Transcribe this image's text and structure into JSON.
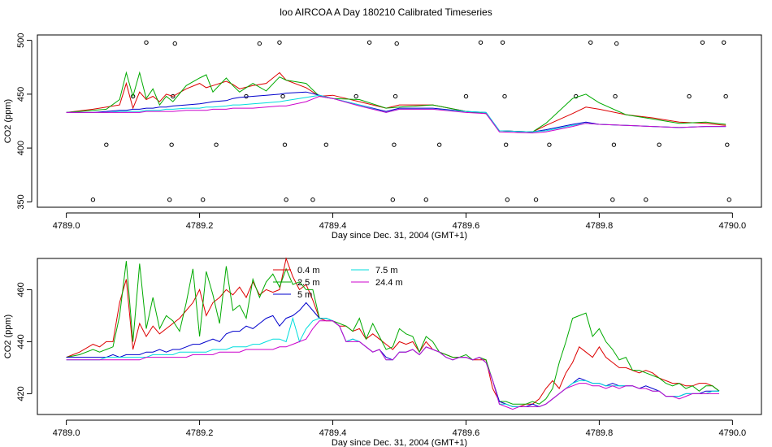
{
  "figure_title": "loo AIRCOA A  Day 180210  Calibrated Timeseries",
  "colors": {
    "0.4 m": "#dd0000",
    "2.5 m": "#00aa00",
    "5 m": "#0000cc",
    "7.5 m": "#00dddd",
    "24.4 m": "#cc00cc",
    "raw_points": "#000000"
  },
  "chart_data": [
    {
      "type": "line",
      "title": "",
      "xlabel": "Day since Dec. 31, 2004 (GMT+1)",
      "ylabel": "CO2 (ppm)",
      "xlim": [
        4789.0,
        4790.0
      ],
      "ylim": [
        345,
        505
      ],
      "xticks": [
        "4789.0",
        "4789.2",
        "4789.4",
        "4789.6",
        "4789.8",
        "4790.0"
      ],
      "yticks": [
        "350",
        "400",
        "450",
        "500"
      ],
      "x": [
        4789.0,
        4789.04,
        4789.06,
        4789.08,
        4789.09,
        4789.1,
        4789.11,
        4789.12,
        4789.13,
        4789.14,
        4789.15,
        4789.16,
        4789.18,
        4789.2,
        4789.21,
        4789.22,
        4789.24,
        4789.25,
        4789.26,
        4789.28,
        4789.3,
        4789.32,
        4789.33,
        4789.36,
        4789.38,
        4789.4,
        4789.44,
        4789.48,
        4789.5,
        4789.55,
        4789.6,
        4789.63,
        4789.65,
        4789.7,
        4789.72,
        4789.76,
        4789.78,
        4789.8,
        4789.84,
        4789.88,
        4789.92,
        4789.96,
        4789.99
      ],
      "series": [
        {
          "name": "0.4 m",
          "values": [
            433,
            436,
            438,
            440,
            460,
            437,
            452,
            445,
            448,
            443,
            450,
            448,
            455,
            460,
            456,
            458,
            462,
            459,
            455,
            458,
            460,
            470,
            463,
            456,
            448,
            449,
            443,
            437,
            440,
            440,
            434,
            432,
            416,
            415,
            421,
            432,
            438,
            436,
            431,
            428,
            424,
            423,
            421
          ]
        },
        {
          "name": "2.5 m",
          "values": [
            433,
            435,
            436,
            445,
            470,
            448,
            470,
            446,
            455,
            440,
            448,
            443,
            458,
            465,
            468,
            452,
            465,
            458,
            452,
            460,
            453,
            466,
            463,
            460,
            448,
            446,
            445,
            437,
            438,
            440,
            434,
            432,
            416,
            415,
            423,
            446,
            450,
            442,
            431,
            427,
            423,
            424,
            422
          ]
        },
        {
          "name": "5 m",
          "values": [
            433,
            433,
            434,
            435,
            435,
            436,
            436,
            437,
            437,
            438,
            438,
            439,
            440,
            441,
            442,
            443,
            444,
            446,
            447,
            448,
            449,
            450,
            451,
            452,
            449,
            446,
            440,
            434,
            437,
            437,
            434,
            433,
            416,
            415,
            417,
            422,
            424,
            422,
            421,
            420,
            419,
            420,
            420
          ]
        },
        {
          "name": "7.5 m",
          "values": [
            433,
            433,
            433,
            434,
            434,
            434,
            434,
            435,
            435,
            435,
            436,
            436,
            437,
            437,
            438,
            438,
            439,
            440,
            440,
            441,
            442,
            443,
            444,
            447,
            449,
            446,
            440,
            433,
            436,
            436,
            434,
            433,
            416,
            415,
            416,
            421,
            423,
            422,
            421,
            420,
            419,
            420,
            420
          ]
        },
        {
          "name": "24.4 m",
          "values": [
            433,
            433,
            433,
            433,
            433,
            433,
            433,
            434,
            434,
            434,
            434,
            434,
            435,
            435,
            435,
            436,
            436,
            437,
            437,
            437,
            438,
            439,
            439,
            443,
            448,
            446,
            439,
            433,
            436,
            436,
            433,
            432,
            415,
            414,
            415,
            420,
            423,
            422,
            421,
            420,
            419,
            420,
            420
          ]
        }
      ],
      "raw_points": [
        {
          "x": 4789.04,
          "y": 352
        },
        {
          "x": 4789.06,
          "y": 403
        },
        {
          "x": 4789.1,
          "y": 448
        },
        {
          "x": 4789.12,
          "y": 498
        },
        {
          "x": 4789.155,
          "y": 352
        },
        {
          "x": 4789.158,
          "y": 403
        },
        {
          "x": 4789.16,
          "y": 448
        },
        {
          "x": 4789.163,
          "y": 497
        },
        {
          "x": 4789.205,
          "y": 352
        },
        {
          "x": 4789.225,
          "y": 403
        },
        {
          "x": 4789.27,
          "y": 448
        },
        {
          "x": 4789.29,
          "y": 497
        },
        {
          "x": 4789.32,
          "y": 498
        },
        {
          "x": 4789.325,
          "y": 448
        },
        {
          "x": 4789.328,
          "y": 403
        },
        {
          "x": 4789.33,
          "y": 352
        },
        {
          "x": 4789.37,
          "y": 352
        },
        {
          "x": 4789.39,
          "y": 403
        },
        {
          "x": 4789.435,
          "y": 448
        },
        {
          "x": 4789.455,
          "y": 498
        },
        {
          "x": 4789.49,
          "y": 352
        },
        {
          "x": 4789.492,
          "y": 403
        },
        {
          "x": 4789.494,
          "y": 448
        },
        {
          "x": 4789.496,
          "y": 497
        },
        {
          "x": 4789.54,
          "y": 352
        },
        {
          "x": 4789.56,
          "y": 403
        },
        {
          "x": 4789.6,
          "y": 448
        },
        {
          "x": 4789.622,
          "y": 498
        },
        {
          "x": 4789.655,
          "y": 498
        },
        {
          "x": 4789.658,
          "y": 448
        },
        {
          "x": 4789.66,
          "y": 403
        },
        {
          "x": 4789.662,
          "y": 352
        },
        {
          "x": 4789.705,
          "y": 352
        },
        {
          "x": 4789.725,
          "y": 403
        },
        {
          "x": 4789.765,
          "y": 448
        },
        {
          "x": 4789.787,
          "y": 498
        },
        {
          "x": 4789.82,
          "y": 352
        },
        {
          "x": 4789.822,
          "y": 403
        },
        {
          "x": 4789.824,
          "y": 448
        },
        {
          "x": 4789.826,
          "y": 497
        },
        {
          "x": 4789.87,
          "y": 352
        },
        {
          "x": 4789.89,
          "y": 403
        },
        {
          "x": 4789.935,
          "y": 448
        },
        {
          "x": 4789.955,
          "y": 498
        },
        {
          "x": 4789.987,
          "y": 498
        },
        {
          "x": 4789.99,
          "y": 448
        },
        {
          "x": 4789.992,
          "y": 403
        },
        {
          "x": 4789.995,
          "y": 352
        }
      ]
    },
    {
      "type": "line",
      "title": "",
      "xlabel": "Day since Dec. 31, 2004 (GMT+1)",
      "ylabel": "CO2 (ppm)",
      "xlim": [
        4789.0,
        4790.0
      ],
      "ylim": [
        412,
        472
      ],
      "xticks": [
        "4789.0",
        "4789.2",
        "4789.4",
        "4789.6",
        "4789.8",
        "4790.0"
      ],
      "yticks": [
        "420",
        "440",
        "460"
      ],
      "legend": {
        "placement": "top-center",
        "entries": [
          "0.4 m",
          "2.5 m",
          "5 m",
          "7.5 m",
          "24.4 m"
        ]
      },
      "x": [
        4789.0,
        4789.02,
        4789.04,
        4789.05,
        4789.06,
        4789.07,
        4789.08,
        4789.09,
        4789.1,
        4789.11,
        4789.12,
        4789.13,
        4789.14,
        4789.15,
        4789.16,
        4789.17,
        4789.18,
        4789.19,
        4789.2,
        4789.21,
        4789.22,
        4789.23,
        4789.24,
        4789.25,
        4789.26,
        4789.27,
        4789.28,
        4789.29,
        4789.3,
        4789.31,
        4789.32,
        4789.33,
        4789.34,
        4789.35,
        4789.36,
        4789.37,
        4789.38,
        4789.39,
        4789.4,
        4789.41,
        4789.42,
        4789.43,
        4789.44,
        4789.45,
        4789.46,
        4789.47,
        4789.48,
        4789.49,
        4789.5,
        4789.51,
        4789.52,
        4789.53,
        4789.54,
        4789.55,
        4789.56,
        4789.57,
        4789.58,
        4789.59,
        4789.6,
        4789.61,
        4789.62,
        4789.63,
        4789.64,
        4789.65,
        4789.66,
        4789.67,
        4789.68,
        4789.69,
        4789.7,
        4789.71,
        4789.72,
        4789.73,
        4789.74,
        4789.75,
        4789.76,
        4789.77,
        4789.78,
        4789.79,
        4789.8,
        4789.81,
        4789.82,
        4789.83,
        4789.84,
        4789.85,
        4789.86,
        4789.87,
        4789.88,
        4789.89,
        4789.9,
        4789.91,
        4789.92,
        4789.93,
        4789.94,
        4789.95,
        4789.96,
        4789.97,
        4789.98
      ],
      "series": [
        {
          "name": "0.4 m",
          "values": [
            434,
            436,
            439,
            438,
            440,
            440,
            455,
            464,
            437,
            447,
            442,
            446,
            443,
            445,
            447,
            449,
            452,
            455,
            460,
            450,
            455,
            457,
            460,
            458,
            461,
            457,
            463,
            458,
            460,
            459,
            460,
            472,
            465,
            460,
            462,
            456,
            449,
            448,
            448,
            446,
            446,
            444,
            445,
            441,
            443,
            441,
            439,
            437,
            440,
            439,
            440,
            436,
            440,
            437,
            436,
            435,
            434,
            434,
            434,
            433,
            433,
            433,
            422,
            417,
            416,
            415,
            415,
            416,
            416,
            418,
            422,
            425,
            422,
            428,
            432,
            438,
            436,
            434,
            438,
            434,
            432,
            430,
            430,
            429,
            428,
            429,
            428,
            426,
            425,
            424,
            424,
            423,
            423,
            424,
            424,
            423,
            421
          ]
        },
        {
          "name": "2.5 m",
          "values": [
            434,
            435,
            437,
            436,
            437,
            438,
            450,
            471,
            440,
            470,
            445,
            457,
            445,
            450,
            448,
            444,
            455,
            468,
            442,
            467,
            458,
            447,
            469,
            452,
            454,
            449,
            464,
            457,
            463,
            466,
            461,
            468,
            462,
            463,
            460,
            460,
            449,
            449,
            448,
            447,
            446,
            444,
            449,
            441,
            447,
            442,
            437,
            438,
            445,
            443,
            442,
            436,
            442,
            440,
            436,
            435,
            434,
            434,
            435,
            433,
            434,
            433,
            425,
            417,
            417,
            416,
            416,
            416,
            417,
            416,
            418,
            422,
            432,
            440,
            449,
            450,
            451,
            442,
            445,
            440,
            437,
            433,
            434,
            429,
            429,
            428,
            427,
            426,
            424,
            423,
            424,
            422,
            423,
            421,
            423,
            423,
            421
          ]
        },
        {
          "name": "5 m",
          "values": [
            434,
            434,
            434,
            434,
            434,
            435,
            434,
            435,
            435,
            435,
            436,
            436,
            437,
            436,
            437,
            437,
            438,
            439,
            439,
            440,
            441,
            440,
            443,
            444,
            444,
            446,
            445,
            447,
            449,
            450,
            446,
            449,
            450,
            452,
            455,
            452,
            449,
            449,
            448,
            446,
            440,
            441,
            440,
            438,
            436,
            437,
            434,
            433,
            436,
            436,
            437,
            435,
            438,
            437,
            436,
            434,
            433,
            434,
            434,
            433,
            434,
            432,
            425,
            417,
            416,
            415,
            415,
            415,
            416,
            415,
            416,
            418,
            420,
            422,
            424,
            426,
            425,
            424,
            424,
            423,
            424,
            423,
            423,
            423,
            422,
            423,
            422,
            421,
            419,
            419,
            419,
            420,
            420,
            420,
            421,
            421,
            421
          ]
        },
        {
          "name": "7.5 m",
          "values": [
            433,
            433,
            433,
            433,
            434,
            434,
            434,
            434,
            434,
            434,
            434,
            435,
            435,
            435,
            435,
            436,
            436,
            436,
            436,
            436,
            437,
            437,
            437,
            438,
            438,
            438,
            439,
            439,
            440,
            441,
            441,
            440,
            449,
            440,
            445,
            448,
            449,
            449,
            448,
            446,
            440,
            441,
            440,
            438,
            436,
            437,
            433,
            433,
            436,
            436,
            437,
            435,
            438,
            437,
            436,
            434,
            433,
            434,
            434,
            433,
            434,
            432,
            425,
            416,
            416,
            415,
            415,
            415,
            415,
            415,
            416,
            418,
            420,
            422,
            424,
            425,
            425,
            424,
            424,
            423,
            423,
            423,
            423,
            423,
            422,
            422,
            421,
            421,
            419,
            419,
            419,
            420,
            420,
            420,
            420,
            421,
            421
          ]
        },
        {
          "name": "24.4 m",
          "values": [
            433,
            433,
            433,
            433,
            433,
            433,
            433,
            433,
            433,
            433,
            434,
            434,
            434,
            434,
            434,
            434,
            434,
            435,
            435,
            435,
            435,
            436,
            436,
            436,
            436,
            437,
            437,
            437,
            437,
            437,
            438,
            438,
            439,
            440,
            441,
            445,
            448,
            448,
            448,
            446,
            440,
            440,
            440,
            438,
            436,
            437,
            433,
            433,
            436,
            436,
            437,
            435,
            438,
            437,
            436,
            434,
            433,
            434,
            434,
            433,
            434,
            432,
            425,
            416,
            415,
            414,
            415,
            415,
            415,
            415,
            416,
            418,
            420,
            422,
            423,
            424,
            424,
            423,
            423,
            422,
            423,
            422,
            423,
            423,
            422,
            422,
            421,
            421,
            419,
            419,
            418,
            419,
            420,
            420,
            420,
            420,
            420
          ]
        }
      ]
    }
  ]
}
